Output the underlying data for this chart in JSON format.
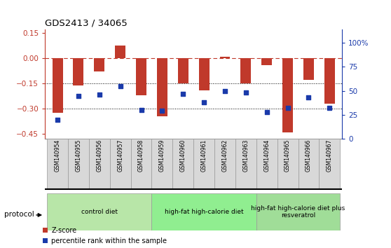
{
  "title": "GDS2413 / 34065",
  "samples": [
    "GSM140954",
    "GSM140955",
    "GSM140956",
    "GSM140957",
    "GSM140958",
    "GSM140959",
    "GSM140960",
    "GSM140961",
    "GSM140962",
    "GSM140963",
    "GSM140964",
    "GSM140965",
    "GSM140966",
    "GSM140967"
  ],
  "z_scores": [
    -0.325,
    -0.16,
    -0.08,
    0.075,
    -0.22,
    -0.345,
    -0.15,
    -0.19,
    0.01,
    -0.15,
    -0.04,
    -0.44,
    -0.13,
    -0.27
  ],
  "pct_ranks": [
    20,
    45,
    46,
    55,
    30,
    29,
    47,
    38,
    50,
    48,
    28,
    32,
    43,
    32
  ],
  "groups": [
    {
      "label": "control diet",
      "start": 0,
      "end": 5,
      "color": "#b8e6a8"
    },
    {
      "label": "high-fat high-calorie diet",
      "start": 5,
      "end": 10,
      "color": "#90ee90"
    },
    {
      "label": "high-fat high-calorie diet plus\nresveratrol",
      "start": 10,
      "end": 14,
      "color": "#a0dd98"
    }
  ],
  "bar_color": "#c0392b",
  "dot_color": "#1a3aaa",
  "ylim_left": [
    -0.48,
    0.17
  ],
  "ylim_right": [
    0,
    113.6
  ],
  "yticks_left": [
    0.15,
    0,
    -0.15,
    -0.3,
    -0.45
  ],
  "yticks_right": [
    100,
    75,
    50,
    25,
    0
  ],
  "ytick_right_labels": [
    "100%",
    "75",
    "50",
    "25",
    "0"
  ],
  "hline_y": 0,
  "dotted_lines": [
    -0.15,
    -0.3
  ],
  "legend_zscore": "Z-score",
  "legend_pct": "percentile rank within the sample",
  "protocol_label": "protocol"
}
